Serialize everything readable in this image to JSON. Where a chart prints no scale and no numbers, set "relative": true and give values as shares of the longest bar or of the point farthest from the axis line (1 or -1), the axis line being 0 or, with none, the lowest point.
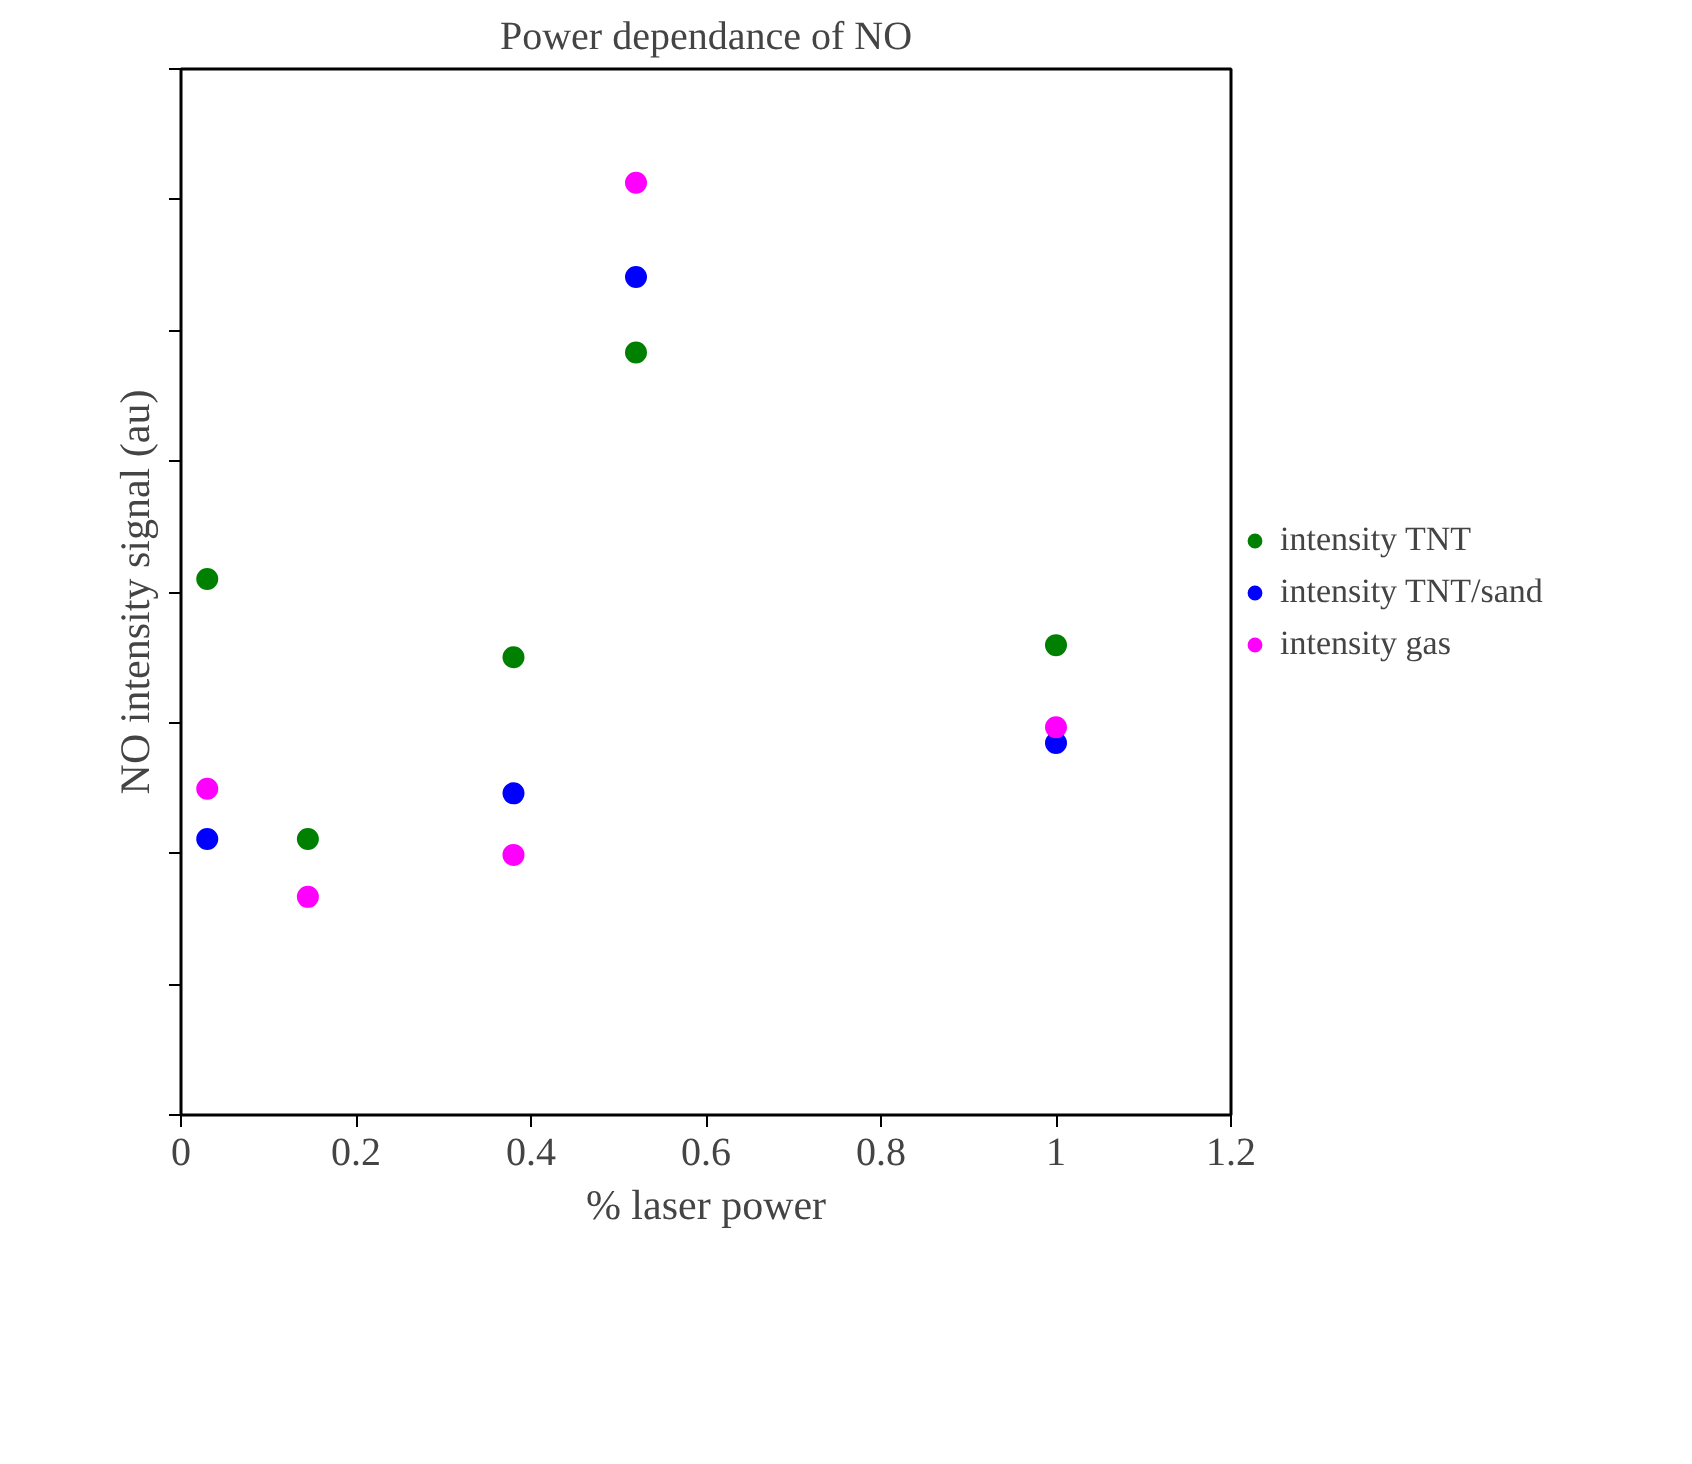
{
  "chart_data": {
    "type": "scatter",
    "title": "Power dependance of NO",
    "xlabel": "% laser power",
    "ylabel": "NO intensity signal (au)",
    "x": [
      0.03,
      0.145,
      0.38,
      0.52,
      1.0
    ],
    "series": [
      {
        "name": "intensity TNT",
        "color": "#008000",
        "values": [
          0.575,
          0.296,
          0.491,
          0.818,
          0.504
        ]
      },
      {
        "name": "intensity TNT/sand",
        "color": "#0000ff",
        "values": [
          0.296,
          null,
          0.345,
          0.899,
          0.399
        ]
      },
      {
        "name": "intensity gas",
        "color": "#ff00ff",
        "values": [
          0.35,
          0.234,
          0.279,
          1.0,
          0.416
        ]
      }
    ],
    "relative": true,
    "xlim": [
      0,
      1.2
    ],
    "xticks": [
      0,
      0.2,
      0.4,
      0.6,
      0.8,
      1,
      1.2
    ],
    "tick_labels": "x",
    "grid": false,
    "legend": "right",
    "marker": "circle"
  }
}
